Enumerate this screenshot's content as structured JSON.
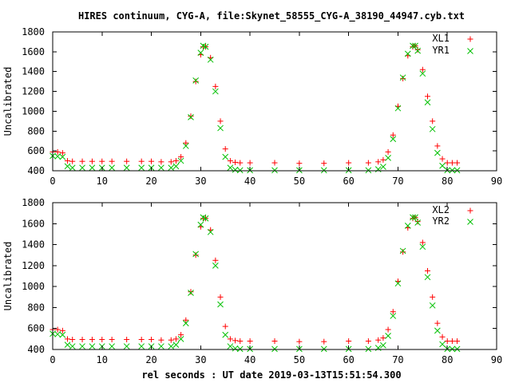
{
  "title": "HIRES continuum, CYG-A, file:Skynet_58555_CYG-A_38190_44947.cyb.txt",
  "xlabel": "rel seconds : UT date 2019-03-13T15:51:54.300",
  "colors": {
    "red": "#ff0000",
    "green": "#00c000",
    "axis": "#000000"
  },
  "chart_data": [
    {
      "type": "scatter",
      "ylabel": "Uncalibrated",
      "xlim": [
        0,
        90
      ],
      "ylim": [
        400,
        1800
      ],
      "xticks": [
        0,
        10,
        20,
        30,
        40,
        50,
        60,
        70,
        80,
        90
      ],
      "yticks": [
        400,
        600,
        800,
        1000,
        1200,
        1400,
        1600,
        1800
      ],
      "xtick_labels": [
        "0",
        "10",
        "20",
        "30",
        "40",
        "50",
        "60",
        "70",
        "80",
        "90"
      ],
      "ytick_labels": [
        "400",
        "600",
        "800",
        "1000",
        "1200",
        "1400",
        "1600",
        "1800"
      ],
      "grid": false,
      "legend_position": "top-right",
      "series": [
        {
          "name": "XL1",
          "marker": "plus",
          "color": "#ff0000",
          "x": [
            0.0,
            1.0,
            2.0,
            3.0,
            4.0,
            6.0,
            8.0,
            10.0,
            12.0,
            15.0,
            18.0,
            20.0,
            22.0,
            24.0,
            25.0,
            26.0,
            27.0,
            28.0,
            29.0,
            30.0,
            30.5,
            31.0,
            32.0,
            33.0,
            34.0,
            35.0,
            36.0,
            37.0,
            38.0,
            40.0,
            45.0,
            50.0,
            55.0,
            60.0,
            64.0,
            66.0,
            67.0,
            68.0,
            69.0,
            70.0,
            71.0,
            72.0,
            73.0,
            73.5,
            74.0,
            75.0,
            76.0,
            77.0,
            78.0,
            79.0,
            80.0,
            81.0,
            82.0
          ],
          "y": [
            590,
            590,
            580,
            500,
            495,
            495,
            495,
            495,
            495,
            495,
            495,
            495,
            490,
            490,
            500,
            540,
            680,
            950,
            1300,
            1570,
            1650,
            1650,
            1540,
            1250,
            900,
            620,
            500,
            485,
            480,
            480,
            480,
            475,
            475,
            480,
            480,
            490,
            510,
            590,
            760,
            1050,
            1330,
            1560,
            1650,
            1660,
            1620,
            1420,
            1150,
            900,
            650,
            520,
            480,
            480,
            480
          ]
        },
        {
          "name": "YR1",
          "marker": "cross",
          "color": "#00c000",
          "x": [
            0.0,
            1.0,
            2.0,
            3.0,
            4.0,
            6.0,
            8.0,
            10.0,
            12.0,
            15.0,
            18.0,
            20.0,
            22.0,
            24.0,
            25.0,
            26.0,
            27.0,
            28.0,
            29.0,
            30.0,
            30.5,
            31.0,
            32.0,
            33.0,
            34.0,
            35.0,
            36.0,
            37.0,
            38.0,
            40.0,
            45.0,
            50.0,
            55.0,
            60.0,
            64.0,
            66.0,
            67.0,
            68.0,
            69.0,
            70.0,
            71.0,
            72.0,
            73.0,
            73.5,
            74.0,
            75.0,
            76.0,
            77.0,
            78.0,
            79.0,
            80.0,
            81.0,
            82.0
          ],
          "y": [
            550,
            545,
            540,
            445,
            430,
            430,
            430,
            430,
            430,
            430,
            430,
            430,
            430,
            430,
            445,
            500,
            650,
            940,
            1310,
            1590,
            1660,
            1650,
            1520,
            1200,
            830,
            540,
            430,
            410,
            405,
            405,
            405,
            405,
            405,
            405,
            405,
            415,
            440,
            530,
            720,
            1030,
            1340,
            1580,
            1660,
            1660,
            1610,
            1380,
            1090,
            820,
            580,
            450,
            405,
            405,
            405
          ]
        }
      ]
    },
    {
      "type": "scatter",
      "ylabel": "Uncalibrated",
      "xlim": [
        0,
        90
      ],
      "ylim": [
        400,
        1800
      ],
      "xticks": [
        0,
        10,
        20,
        30,
        40,
        50,
        60,
        70,
        80,
        90
      ],
      "yticks": [
        400,
        600,
        800,
        1000,
        1200,
        1400,
        1600,
        1800
      ],
      "xtick_labels": [
        "0",
        "10",
        "20",
        "30",
        "40",
        "50",
        "60",
        "70",
        "80",
        "90"
      ],
      "ytick_labels": [
        "400",
        "600",
        "800",
        "1000",
        "1200",
        "1400",
        "1600",
        "1800"
      ],
      "grid": false,
      "legend_position": "top-right",
      "series": [
        {
          "name": "XL2",
          "marker": "plus",
          "color": "#ff0000",
          "x": [
            0.0,
            1.0,
            2.0,
            3.0,
            4.0,
            6.0,
            8.0,
            10.0,
            12.0,
            15.0,
            18.0,
            20.0,
            22.0,
            24.0,
            25.0,
            26.0,
            27.0,
            28.0,
            29.0,
            30.0,
            30.5,
            31.0,
            32.0,
            33.0,
            34.0,
            35.0,
            36.0,
            37.0,
            38.0,
            40.0,
            45.0,
            50.0,
            55.0,
            60.0,
            64.0,
            66.0,
            67.0,
            68.0,
            69.0,
            70.0,
            71.0,
            72.0,
            73.0,
            73.5,
            74.0,
            75.0,
            76.0,
            77.0,
            78.0,
            79.0,
            80.0,
            81.0,
            82.0
          ],
          "y": [
            590,
            590,
            580,
            500,
            495,
            495,
            495,
            495,
            495,
            495,
            495,
            495,
            490,
            490,
            500,
            540,
            680,
            950,
            1300,
            1570,
            1650,
            1650,
            1540,
            1250,
            900,
            620,
            500,
            485,
            480,
            480,
            480,
            475,
            475,
            480,
            480,
            490,
            510,
            590,
            760,
            1050,
            1330,
            1560,
            1650,
            1660,
            1620,
            1420,
            1150,
            900,
            650,
            520,
            480,
            480,
            480
          ]
        },
        {
          "name": "YR2",
          "marker": "cross",
          "color": "#00c000",
          "x": [
            0.0,
            1.0,
            2.0,
            3.0,
            4.0,
            6.0,
            8.0,
            10.0,
            12.0,
            15.0,
            18.0,
            20.0,
            22.0,
            24.0,
            25.0,
            26.0,
            27.0,
            28.0,
            29.0,
            30.0,
            30.5,
            31.0,
            32.0,
            33.0,
            34.0,
            35.0,
            36.0,
            37.0,
            38.0,
            40.0,
            45.0,
            50.0,
            55.0,
            60.0,
            64.0,
            66.0,
            67.0,
            68.0,
            69.0,
            70.0,
            71.0,
            72.0,
            73.0,
            73.5,
            74.0,
            75.0,
            76.0,
            77.0,
            78.0,
            79.0,
            80.0,
            81.0,
            82.0
          ],
          "y": [
            550,
            545,
            540,
            445,
            430,
            430,
            430,
            430,
            430,
            430,
            430,
            430,
            430,
            430,
            445,
            500,
            650,
            940,
            1310,
            1590,
            1660,
            1650,
            1520,
            1200,
            830,
            540,
            430,
            410,
            405,
            405,
            405,
            405,
            405,
            405,
            405,
            415,
            440,
            530,
            720,
            1030,
            1340,
            1580,
            1660,
            1660,
            1610,
            1380,
            1090,
            820,
            580,
            450,
            405,
            405,
            405
          ]
        }
      ]
    }
  ]
}
